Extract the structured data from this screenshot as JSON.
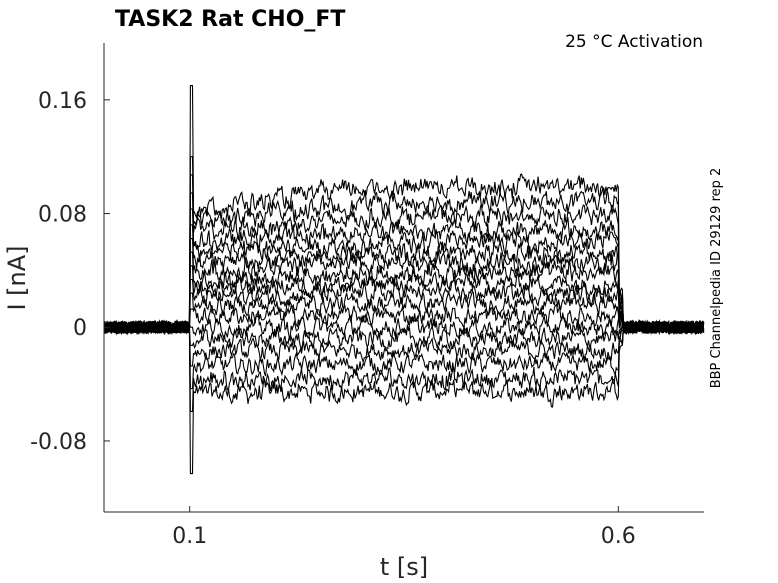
{
  "chart_data": {
    "type": "line",
    "title": "TASK2  Rat  CHO_FT",
    "annotation": "25 °C  Activation",
    "side_label": "BBP Channelpedia ID 29129 rep 2",
    "xlabel": "t [s]",
    "ylabel": "I [nA]",
    "xlim": [
      0.0,
      0.7
    ],
    "ylim": [
      -0.13,
      0.2
    ],
    "xticks": [
      0.1,
      0.6
    ],
    "xtick_labels": [
      "0.1",
      "0.6"
    ],
    "yticks": [
      -0.08,
      0,
      0.08,
      0.16
    ],
    "ytick_labels": [
      "-0.08",
      "0",
      "0.08",
      "0.16"
    ],
    "grid": false,
    "legend": "none",
    "stimulus": {
      "start": 0.1,
      "end": 0.6
    },
    "transient_peaks": {
      "max": 0.17,
      "min": -0.103
    },
    "series_mean_currents": [
      -0.047,
      -0.037,
      -0.027,
      -0.017,
      -0.008,
      0.0,
      0.008,
      0.015,
      0.021,
      0.027,
      0.033,
      0.039,
      0.045,
      0.052,
      0.059,
      0.067,
      0.075,
      0.083
    ],
    "series_end_drift": [
      0.002,
      0.001,
      0.001,
      0.001,
      0.0,
      0.0,
      0.0,
      0.002,
      0.003,
      0.004,
      0.005,
      0.006,
      0.007,
      0.008,
      0.009,
      0.011,
      0.013,
      0.016
    ],
    "noise_amplitude": 0.004,
    "line_color": "#000000",
    "axis_color": "#262626"
  }
}
